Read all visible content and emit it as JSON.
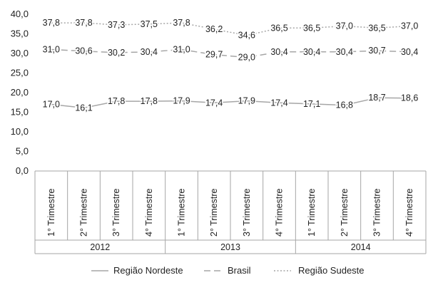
{
  "chart_data": {
    "type": "line",
    "title": "",
    "xlabel": "",
    "ylabel": "",
    "ylim": [
      0,
      40
    ],
    "yticks": [
      "0,0",
      "5,0",
      "10,0",
      "15,0",
      "20,0",
      "25,0",
      "30,0",
      "35,0",
      "40,0"
    ],
    "grid": false,
    "legend_position": "bottom",
    "categories": [
      "1° Trimestre",
      "2° Trimestre",
      "3° Trimestre",
      "4° Trimestre",
      "1° Trimestre",
      "2° Trimestre",
      "3° Trimestre",
      "4° Trimestre",
      "1° Trimestre",
      "2° Trimestre",
      "3° Trimestre",
      "4° Trimestre"
    ],
    "groups": [
      {
        "label": "2012",
        "span": 4
      },
      {
        "label": "2013",
        "span": 4
      },
      {
        "label": "2014",
        "span": 4
      }
    ],
    "series": [
      {
        "name": "Região Nordeste",
        "style": "solid",
        "color": "#a6a6a6",
        "values": [
          17.0,
          16.1,
          17.8,
          17.8,
          17.9,
          17.4,
          17.9,
          17.4,
          17.1,
          16.8,
          18.7,
          18.6
        ],
        "labels": [
          "17,0",
          "16,1",
          "17,8",
          "17,8",
          "17,9",
          "17,4",
          "17,9",
          "17,4",
          "17,1",
          "16,8",
          "18,7",
          "18,6"
        ]
      },
      {
        "name": "Brasil",
        "style": "dashed",
        "color": "#a6a6a6",
        "values": [
          31.0,
          30.6,
          30.2,
          30.4,
          31.0,
          29.7,
          29.0,
          30.4,
          30.4,
          30.4,
          30.7,
          30.4
        ],
        "labels": [
          "31,0",
          "30,6",
          "30,2",
          "30,4",
          "31,0",
          "29,7",
          "29,0",
          "30,4",
          "30,4",
          "30,4",
          "30,7",
          "30,4"
        ]
      },
      {
        "name": "Região Sudeste",
        "style": "dotted",
        "color": "#a6a6a6",
        "values": [
          37.8,
          37.8,
          37.3,
          37.5,
          37.8,
          36.2,
          34.6,
          36.5,
          36.5,
          37.0,
          36.5,
          37.0
        ],
        "labels": [
          "37,8",
          "37,8",
          "37,3",
          "37,5",
          "37,8",
          "36,2",
          "34,6",
          "36,5",
          "36,5",
          "37,0",
          "36,5",
          "37,0"
        ]
      }
    ]
  }
}
